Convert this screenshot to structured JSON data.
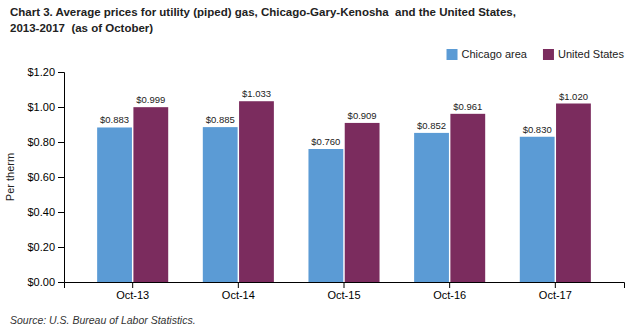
{
  "chart_data": {
    "type": "bar",
    "title": "Chart 3. Average prices for utility (piped) gas, Chicago-Gary-Kenosha  and the United States,",
    "subtitle": "2013-2017  (as of October)",
    "ylabel": "Per therm",
    "annotations": [
      "Source: U.S. Bureau of Labor Statistics."
    ],
    "categories": [
      "Oct-13",
      "Oct-14",
      "Oct-15",
      "Oct-16",
      "Oct-17"
    ],
    "series": [
      {
        "name": "Chicago area",
        "color": "#5B9BD5",
        "values": [
          0.883,
          0.885,
          0.76,
          0.852,
          0.83
        ],
        "value_labels": [
          "$0.883",
          "$0.885",
          "$0.760",
          "$0.852",
          "$0.830"
        ]
      },
      {
        "name": "United States",
        "color": "#7B2C5E",
        "values": [
          0.999,
          1.033,
          0.909,
          0.961,
          1.02
        ],
        "value_labels": [
          "$0.999",
          "$1.033",
          "$0.909",
          "$0.961",
          "$1.020"
        ]
      }
    ],
    "ylim": [
      0,
      1.2
    ],
    "yticks": [
      {
        "value": 0.0,
        "label": "$0.00"
      },
      {
        "value": 0.2,
        "label": "$0.20"
      },
      {
        "value": 0.4,
        "label": "$0.40"
      },
      {
        "value": 0.6,
        "label": "$0.60"
      },
      {
        "value": 0.8,
        "label": "$0.80"
      },
      {
        "value": 1.0,
        "label": "$1.00"
      },
      {
        "value": 1.2,
        "label": "$1.20"
      }
    ],
    "data_labels": true,
    "legend": "upper right",
    "grid": false
  }
}
